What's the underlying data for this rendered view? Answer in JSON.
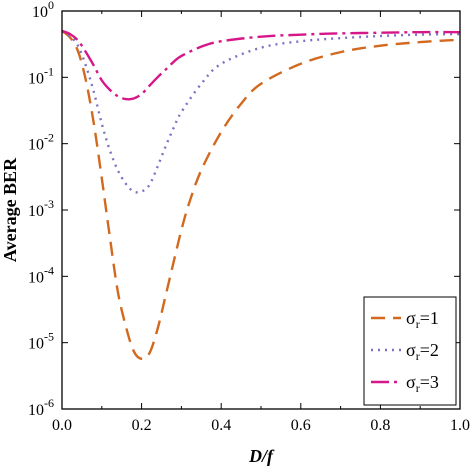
{
  "chart_data": {
    "type": "line",
    "xlabel": "D/f",
    "ylabel": "Average BER",
    "xlim": [
      0.0,
      1.0
    ],
    "ylim": [
      1e-06,
      1
    ],
    "yscale": "log",
    "grid": false,
    "legend_position": "bottom-right",
    "x_ticks": [
      {
        "value": 0.0,
        "label": "0.0"
      },
      {
        "value": 0.2,
        "label": "0.2"
      },
      {
        "value": 0.4,
        "label": "0.4"
      },
      {
        "value": 0.6,
        "label": "0.6"
      },
      {
        "value": 0.8,
        "label": "0.8"
      },
      {
        "value": 1.0,
        "label": "1.0"
      }
    ],
    "y_ticks": [
      {
        "value": 1,
        "base": "10",
        "exp": "0"
      },
      {
        "value": 0.1,
        "base": "10",
        "exp": "-1"
      },
      {
        "value": 0.01,
        "base": "10",
        "exp": "-2"
      },
      {
        "value": 0.001,
        "base": "10",
        "exp": "-3"
      },
      {
        "value": 0.0001,
        "base": "10",
        "exp": "-4"
      },
      {
        "value": 1e-05,
        "base": "10",
        "exp": "-5"
      },
      {
        "value": 1e-06,
        "base": "10",
        "exp": "-6"
      }
    ],
    "series": [
      {
        "symbol": "σ",
        "subscript": "r",
        "suffix": "=1",
        "color": "#d2691e",
        "dash": "14,8",
        "x": [
          0.0,
          0.02,
          0.04,
          0.06,
          0.08,
          0.1,
          0.12,
          0.14,
          0.16,
          0.18,
          0.2,
          0.22,
          0.24,
          0.26,
          0.28,
          0.3,
          0.32,
          0.35,
          0.4,
          0.45,
          0.5,
          0.6,
          0.7,
          0.8,
          0.9,
          1.0
        ],
        "y": [
          0.5,
          0.4,
          0.25,
          0.09,
          0.02,
          0.003,
          0.0004,
          6e-05,
          1.8e-05,
          7.5e-06,
          5.7e-06,
          7e-06,
          1.6e-05,
          5e-05,
          0.00016,
          0.0005,
          0.0013,
          0.004,
          0.015,
          0.04,
          0.08,
          0.16,
          0.24,
          0.3,
          0.34,
          0.37
        ]
      },
      {
        "symbol": "σ",
        "subscript": "r",
        "suffix": "=2",
        "color": "#7b72c4",
        "dash": "2,5",
        "x": [
          0.0,
          0.02,
          0.04,
          0.06,
          0.08,
          0.1,
          0.12,
          0.14,
          0.16,
          0.18,
          0.2,
          0.22,
          0.24,
          0.26,
          0.28,
          0.3,
          0.35,
          0.4,
          0.5,
          0.6,
          0.7,
          0.8,
          0.9,
          1.0
        ],
        "y": [
          0.5,
          0.42,
          0.3,
          0.15,
          0.06,
          0.02,
          0.008,
          0.004,
          0.0025,
          0.0019,
          0.0019,
          0.0024,
          0.0045,
          0.009,
          0.017,
          0.03,
          0.08,
          0.16,
          0.28,
          0.35,
          0.39,
          0.42,
          0.44,
          0.45
        ]
      },
      {
        "symbol": "σ",
        "subscript": "r",
        "suffix": "=3",
        "color": "#d6178a",
        "dash": "18,5,3,5",
        "x": [
          0.0,
          0.02,
          0.04,
          0.06,
          0.08,
          0.1,
          0.12,
          0.14,
          0.16,
          0.18,
          0.2,
          0.22,
          0.24,
          0.26,
          0.28,
          0.3,
          0.35,
          0.4,
          0.5,
          0.6,
          0.7,
          0.8,
          0.9,
          1.0
        ],
        "y": [
          0.5,
          0.45,
          0.36,
          0.24,
          0.15,
          0.09,
          0.065,
          0.052,
          0.047,
          0.048,
          0.056,
          0.075,
          0.1,
          0.13,
          0.17,
          0.21,
          0.29,
          0.35,
          0.41,
          0.44,
          0.46,
          0.47,
          0.48,
          0.48
        ]
      }
    ]
  }
}
